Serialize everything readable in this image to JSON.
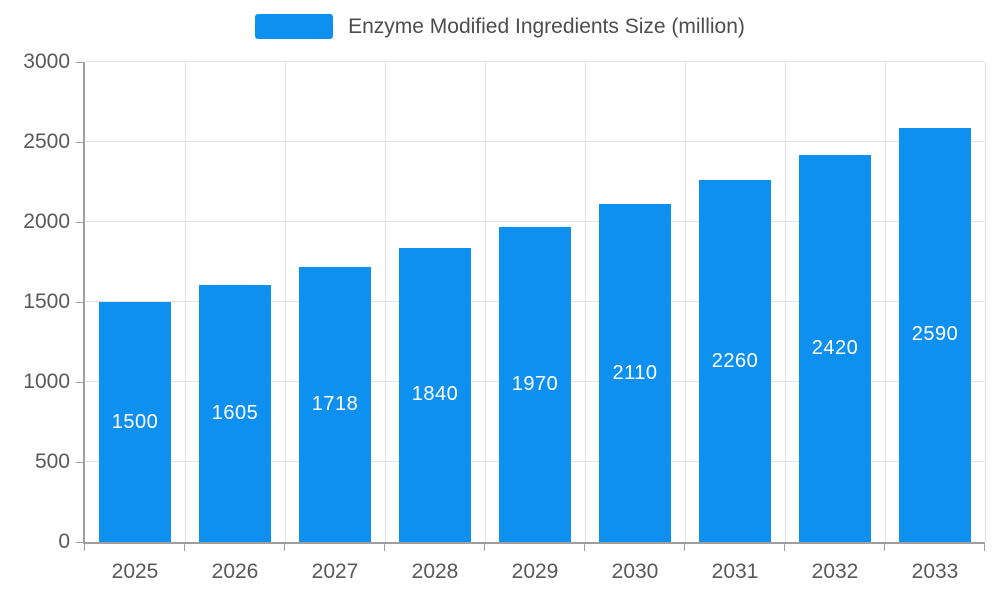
{
  "legend": {
    "label": "Enzyme Modified Ingredients Size (million)"
  },
  "colors": {
    "bar": "#0E90F0",
    "grid": "#E3E3E3",
    "axis": "#9E9E9E",
    "tick_label": "#595959",
    "title_text": "#4D4D4D",
    "value_label": "#FFFFFF",
    "background": "#FFFFFF"
  },
  "chart_data": {
    "type": "bar",
    "title": "Enzyme Modified Ingredients Size (million)",
    "categories": [
      "2025",
      "2026",
      "2027",
      "2028",
      "2029",
      "2030",
      "2031",
      "2032",
      "2033"
    ],
    "values": [
      1500,
      1605,
      1718,
      1840,
      1970,
      2110,
      2260,
      2420,
      2590
    ],
    "xlabel": "",
    "ylabel": "",
    "ylim": [
      0,
      3000
    ],
    "yticks": [
      0,
      500,
      1000,
      1500,
      2000,
      2500,
      3000
    ],
    "grid": true,
    "legend_position": "top",
    "value_label_position": "inside-center"
  }
}
